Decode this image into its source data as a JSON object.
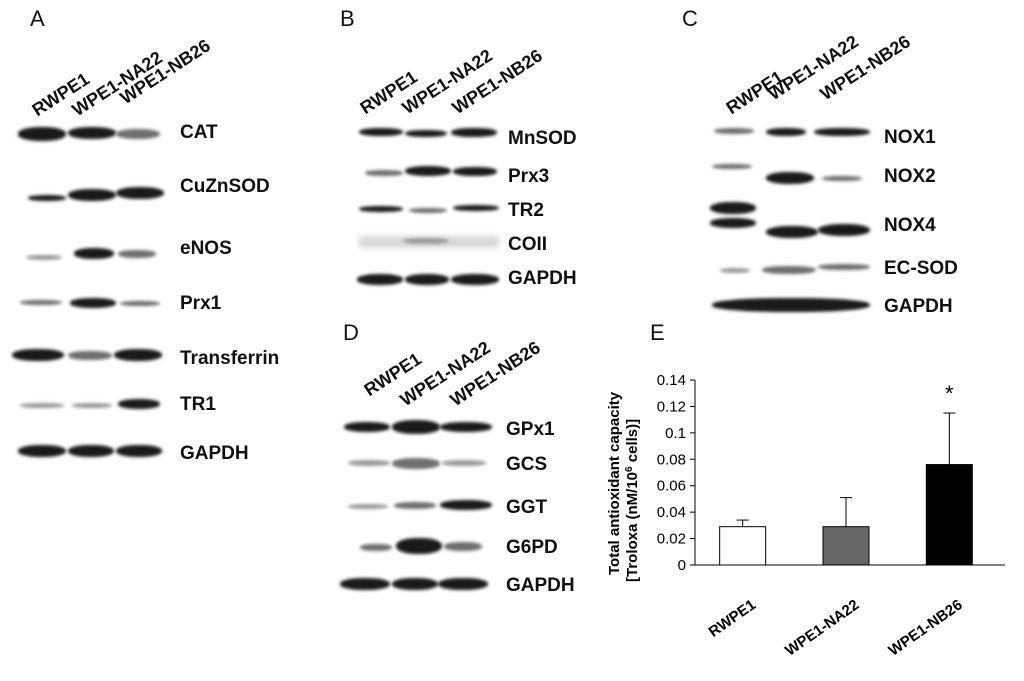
{
  "panels": {
    "A": {
      "letter": "A",
      "lanes": [
        "RWPE1",
        "WPE1-NA22",
        "WPE1-NB26"
      ],
      "proteins": [
        "CAT",
        "CuZnSOD",
        "eNOS",
        "Prx1",
        "Transferrin",
        "TR1",
        "GAPDH"
      ]
    },
    "B": {
      "letter": "B",
      "lanes": [
        "RWPE1",
        "WPE1-NA22",
        "WPE1-NB26"
      ],
      "proteins": [
        "MnSOD",
        "Prx3",
        "TR2",
        "COII",
        "GAPDH"
      ]
    },
    "C": {
      "letter": "C",
      "lanes": [
        "RWPE1",
        "WPE1-NA22",
        "WPE1-NB26"
      ],
      "proteins": [
        "NOX1",
        "NOX2",
        "NOX4",
        "EC-SOD",
        "GAPDH"
      ]
    },
    "D": {
      "letter": "D",
      "lanes": [
        "RWPE1",
        "WPE1-NA22",
        "WPE1-NB26"
      ],
      "proteins": [
        "GPx1",
        "GCS",
        "GGT",
        "G6PD",
        "GAPDH"
      ]
    },
    "E": {
      "letter": "E"
    }
  },
  "chart_data": {
    "type": "bar",
    "categories": [
      "RWPE1",
      "WPE1-NA22",
      "WPE1-NB26"
    ],
    "values": [
      0.029,
      0.029,
      0.076
    ],
    "errors": [
      0.005,
      0.022,
      0.039
    ],
    "bar_colors": [
      "#ffffff",
      "#666666",
      "#000000"
    ],
    "ylabel_line1": "Total antioxidant capacity",
    "ylabel_line2": "[Troloxa (nM/10",
    "ylabel_sup": "6",
    "ylabel_line2_end": " cells)]",
    "ylim": [
      0,
      0.14
    ],
    "yticks": [
      "0",
      "0.02",
      "0.04",
      "0.06",
      "0.08",
      "0.1",
      "0.12",
      "0.14"
    ],
    "ytick_values": [
      0,
      0.02,
      0.04,
      0.06,
      0.08,
      0.1,
      0.12,
      0.14
    ],
    "annotation": "*",
    "grid": false
  }
}
